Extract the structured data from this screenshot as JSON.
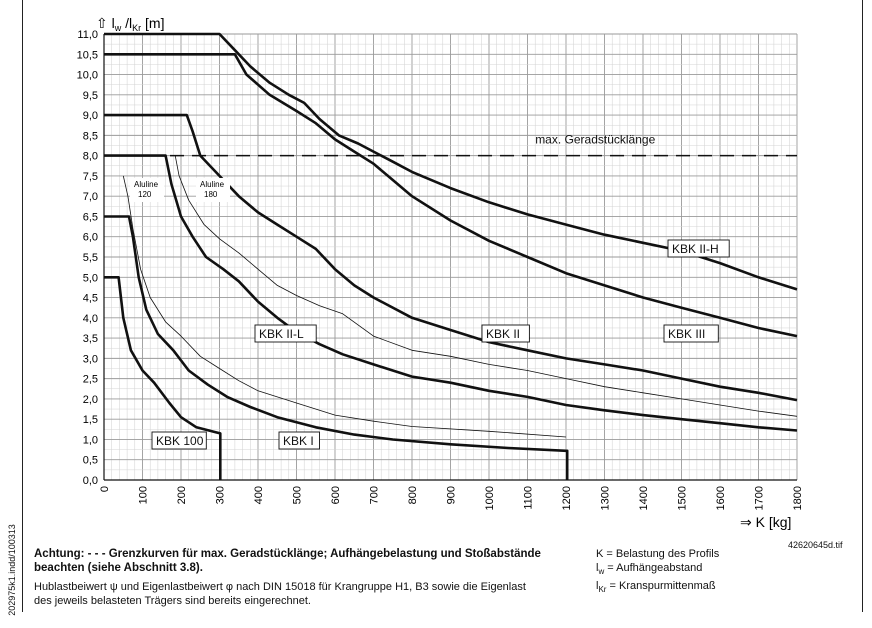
{
  "chart_data": {
    "type": "line",
    "ylabel_arrow": "⇧",
    "ylabel_parts": [
      "l",
      "w",
      " /l",
      "Kr",
      " [m]"
    ],
    "xlabel": "⇒  K [kg]",
    "xlim": [
      0,
      1800
    ],
    "ylim": [
      0,
      11
    ],
    "x_ticks": [
      0,
      100,
      200,
      300,
      400,
      500,
      600,
      700,
      800,
      900,
      1000,
      1100,
      1200,
      1300,
      1400,
      1500,
      1600,
      1700,
      1800
    ],
    "y_ticks": [
      "0,0",
      "0,5",
      "1,0",
      "1,5",
      "2,0",
      "2,5",
      "3,0",
      "3,5",
      "4,0",
      "4,5",
      "5,0",
      "5,5",
      "6,0",
      "6,5",
      "7,0",
      "7,5",
      "8,0",
      "8,5",
      "9,0",
      "9,5",
      "10,0",
      "10,5",
      "11,0"
    ],
    "grid": true,
    "reference_line": {
      "y": 8.0,
      "label": "max. Geradstücklänge",
      "style": "dashed"
    },
    "series": [
      {
        "name": "KBK 100",
        "weight": "bold",
        "points": [
          [
            0,
            5.0
          ],
          [
            38,
            5.0
          ],
          [
            50,
            4.0
          ],
          [
            70,
            3.2
          ],
          [
            100,
            2.7
          ],
          [
            130,
            2.4
          ],
          [
            170,
            1.9
          ],
          [
            200,
            1.55
          ],
          [
            240,
            1.3
          ],
          [
            290,
            1.18
          ],
          [
            302,
            1.15
          ],
          [
            302,
            0
          ]
        ]
      },
      {
        "name": "KBK I",
        "weight": "bold",
        "points": [
          [
            0,
            6.5
          ],
          [
            65,
            6.5
          ],
          [
            75,
            6.0
          ],
          [
            90,
            5.0
          ],
          [
            110,
            4.2
          ],
          [
            140,
            3.6
          ],
          [
            180,
            3.2
          ],
          [
            220,
            2.7
          ],
          [
            270,
            2.35
          ],
          [
            320,
            2.05
          ],
          [
            380,
            1.8
          ],
          [
            450,
            1.55
          ],
          [
            550,
            1.3
          ],
          [
            650,
            1.12
          ],
          [
            750,
            1.0
          ],
          [
            900,
            0.88
          ],
          [
            1050,
            0.79
          ],
          [
            1200,
            0.72
          ],
          [
            1203,
            0.72
          ],
          [
            1203,
            0
          ]
        ]
      },
      {
        "name": "Aluline 120",
        "weight": "thin",
        "label": "Aluline 120",
        "points": [
          [
            50,
            7.5
          ],
          [
            62,
            7.0
          ],
          [
            75,
            6.2
          ],
          [
            95,
            5.2
          ],
          [
            120,
            4.5
          ],
          [
            160,
            3.9
          ],
          [
            200,
            3.55
          ],
          [
            250,
            3.05
          ],
          [
            300,
            2.75
          ],
          [
            350,
            2.45
          ],
          [
            400,
            2.2
          ],
          [
            500,
            1.9
          ],
          [
            600,
            1.6
          ],
          [
            700,
            1.45
          ],
          [
            800,
            1.32
          ],
          [
            1000,
            1.2
          ],
          [
            1200,
            1.06
          ]
        ]
      },
      {
        "name": "KBK II-L",
        "weight": "bold",
        "points": [
          [
            0,
            8.0
          ],
          [
            160,
            8.0
          ],
          [
            175,
            7.3
          ],
          [
            200,
            6.5
          ],
          [
            230,
            6.0
          ],
          [
            265,
            5.5
          ],
          [
            310,
            5.2
          ],
          [
            350,
            4.9
          ],
          [
            400,
            4.4
          ],
          [
            450,
            4.0
          ],
          [
            500,
            3.65
          ],
          [
            560,
            3.35
          ],
          [
            620,
            3.1
          ],
          [
            700,
            2.85
          ],
          [
            800,
            2.55
          ],
          [
            900,
            2.4
          ],
          [
            1000,
            2.2
          ],
          [
            1100,
            2.05
          ],
          [
            1200,
            1.85
          ],
          [
            1300,
            1.72
          ],
          [
            1400,
            1.6
          ],
          [
            1500,
            1.5
          ],
          [
            1600,
            1.4
          ],
          [
            1700,
            1.3
          ],
          [
            1800,
            1.22
          ]
        ]
      },
      {
        "name": "Aluline 180",
        "weight": "thin",
        "label": "Aluline 180",
        "points": [
          [
            185,
            8.0
          ],
          [
            195,
            7.5
          ],
          [
            220,
            6.9
          ],
          [
            260,
            6.3
          ],
          [
            300,
            5.95
          ],
          [
            350,
            5.6
          ],
          [
            400,
            5.2
          ],
          [
            450,
            4.8
          ],
          [
            500,
            4.55
          ],
          [
            560,
            4.3
          ],
          [
            620,
            4.1
          ],
          [
            700,
            3.55
          ],
          [
            800,
            3.2
          ],
          [
            900,
            3.05
          ],
          [
            1000,
            2.85
          ],
          [
            1100,
            2.7
          ],
          [
            1200,
            2.5
          ],
          [
            1300,
            2.3
          ],
          [
            1400,
            2.15
          ],
          [
            1500,
            2.0
          ],
          [
            1600,
            1.85
          ],
          [
            1700,
            1.7
          ],
          [
            1800,
            1.57
          ]
        ]
      },
      {
        "name": "KBK II",
        "weight": "bold",
        "points": [
          [
            0,
            9.0
          ],
          [
            215,
            9.0
          ],
          [
            230,
            8.6
          ],
          [
            250,
            8.0
          ],
          [
            290,
            7.6
          ],
          [
            350,
            7.0
          ],
          [
            400,
            6.6
          ],
          [
            450,
            6.3
          ],
          [
            500,
            6.0
          ],
          [
            550,
            5.7
          ],
          [
            600,
            5.2
          ],
          [
            650,
            4.8
          ],
          [
            700,
            4.5
          ],
          [
            800,
            4.0
          ],
          [
            900,
            3.7
          ],
          [
            1000,
            3.4
          ],
          [
            1100,
            3.2
          ],
          [
            1200,
            3.0
          ],
          [
            1300,
            2.85
          ],
          [
            1400,
            2.7
          ],
          [
            1500,
            2.5
          ],
          [
            1600,
            2.3
          ],
          [
            1700,
            2.15
          ],
          [
            1800,
            1.97
          ]
        ]
      },
      {
        "name": "KBK III",
        "weight": "bold",
        "points": [
          [
            0,
            10.5
          ],
          [
            340,
            10.5
          ],
          [
            370,
            10.0
          ],
          [
            430,
            9.5
          ],
          [
            500,
            9.1
          ],
          [
            550,
            8.8
          ],
          [
            600,
            8.4
          ],
          [
            650,
            8.1
          ],
          [
            700,
            7.8
          ],
          [
            750,
            7.4
          ],
          [
            800,
            7.0
          ],
          [
            900,
            6.4
          ],
          [
            1000,
            5.9
          ],
          [
            1100,
            5.5
          ],
          [
            1200,
            5.1
          ],
          [
            1300,
            4.8
          ],
          [
            1400,
            4.5
          ],
          [
            1500,
            4.25
          ],
          [
            1600,
            4.0
          ],
          [
            1700,
            3.75
          ],
          [
            1800,
            3.55
          ]
        ]
      },
      {
        "name": "KBK II-H",
        "weight": "bold",
        "points": [
          [
            0,
            11.0
          ],
          [
            300,
            11.0
          ],
          [
            330,
            10.7
          ],
          [
            380,
            10.2
          ],
          [
            430,
            9.8
          ],
          [
            480,
            9.5
          ],
          [
            520,
            9.3
          ],
          [
            560,
            8.9
          ],
          [
            610,
            8.5
          ],
          [
            660,
            8.3
          ],
          [
            700,
            8.1
          ],
          [
            750,
            7.85
          ],
          [
            800,
            7.6
          ],
          [
            900,
            7.2
          ],
          [
            1000,
            6.85
          ],
          [
            1100,
            6.55
          ],
          [
            1200,
            6.3
          ],
          [
            1300,
            6.05
          ],
          [
            1400,
            5.85
          ],
          [
            1500,
            5.65
          ],
          [
            1600,
            5.35
          ],
          [
            1700,
            5.0
          ],
          [
            1800,
            4.7
          ]
        ]
      }
    ],
    "curve_labels": [
      {
        "text": "KBK 100",
        "boxed": true
      },
      {
        "text": "KBK I",
        "boxed": true
      },
      {
        "text": "KBK II-L",
        "boxed": true
      },
      {
        "text": "KBK II",
        "boxed": true
      },
      {
        "text": "KBK III",
        "boxed": true
      },
      {
        "text": "KBK II-H",
        "boxed": true
      }
    ]
  },
  "footer": {
    "warning_bold_1": "Achtung: - - - Grenzkurven für max. Geradstücklänge; Aufhängebelastung und Stoßabstände",
    "warning_bold_2": "beachten (siehe Abschnitt 3.8).",
    "note_1": "Hublastbeiwert ψ und Eigenlastbeiwert φ nach DIN 15018 für Krangruppe H1, B3 sowie die Eigenlast",
    "note_2": "des jeweils belasteten Trägers sind bereits eingerechnet.",
    "legend_k": "K = Belastung des Profils",
    "legend_lw_main": "l",
    "legend_lw_sub": "w",
    "legend_lw_rest": " = Aufhängeabstand",
    "legend_lkr_main": "l",
    "legend_lkr_sub": "Kr",
    "legend_lkr_rest": " = Kranspurmittenmaß",
    "file_ref": "42620645d.tif",
    "side_code": "202975k1.indd/100313"
  }
}
